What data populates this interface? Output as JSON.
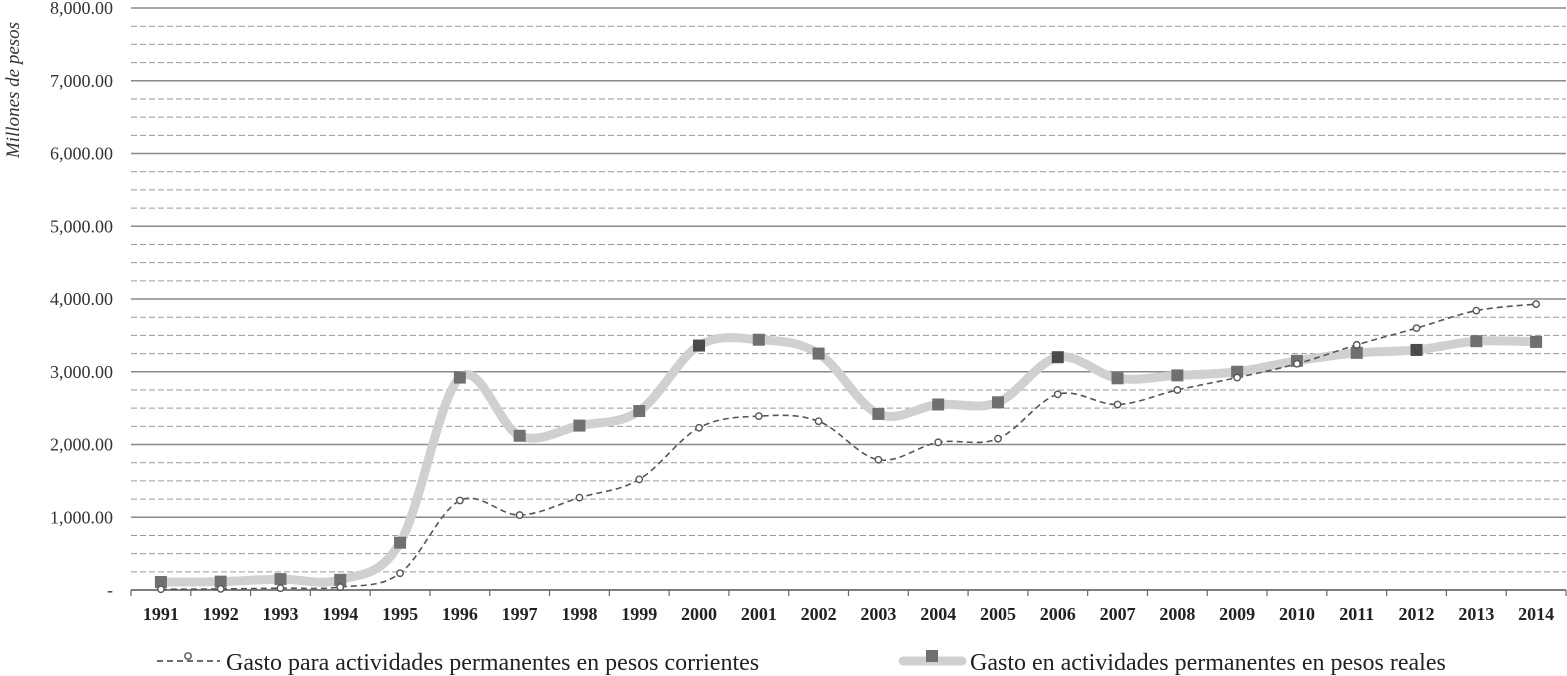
{
  "chart_data": {
    "type": "line",
    "title": "",
    "xlabel": "",
    "ylabel": "Millones de pesos",
    "ylim": [
      0,
      8000
    ],
    "y_ticks": [
      {
        "value": 0,
        "label": "-"
      },
      {
        "value": 1000,
        "label": "1,000.00"
      },
      {
        "value": 2000,
        "label": "2,000.00"
      },
      {
        "value": 3000,
        "label": "3,000.00"
      },
      {
        "value": 4000,
        "label": "4,000.00"
      },
      {
        "value": 5000,
        "label": "5,000.00"
      },
      {
        "value": 6000,
        "label": "6,000.00"
      },
      {
        "value": 7000,
        "label": "7,000.00"
      },
      {
        "value": 8000,
        "label": "8,000.00"
      }
    ],
    "grid": true,
    "legend_position": "bottom",
    "categories": [
      "1991",
      "1992",
      "1993",
      "1994",
      "1995",
      "1996",
      "1997",
      "1998",
      "1999",
      "2000",
      "2001",
      "2002",
      "2003",
      "2004",
      "2005",
      "2006",
      "2007",
      "2008",
      "2009",
      "2010",
      "2011",
      "2012",
      "2013",
      "2014"
    ],
    "series": [
      {
        "name": "Gasto para actividades permanentes en pesos corrientes",
        "style": "dashed-circle",
        "color": "#555555",
        "values": [
          10,
          15,
          25,
          40,
          230,
          1230,
          1030,
          1270,
          1520,
          2230,
          2390,
          2320,
          1790,
          2030,
          2080,
          2690,
          2550,
          2750,
          2920,
          3110,
          3370,
          3600,
          3840,
          3930
        ]
      },
      {
        "name": "Gasto en actividades permanentes en pesos reales",
        "style": "thick-light-square",
        "color": "#d0d0d0",
        "marker_color": "#666666",
        "values": [
          110,
          115,
          150,
          140,
          650,
          2920,
          2120,
          2260,
          2460,
          3360,
          3440,
          3250,
          2420,
          2550,
          2580,
          3200,
          2910,
          2950,
          3000,
          3150,
          3260,
          3300,
          3420,
          3410
        ]
      }
    ]
  }
}
